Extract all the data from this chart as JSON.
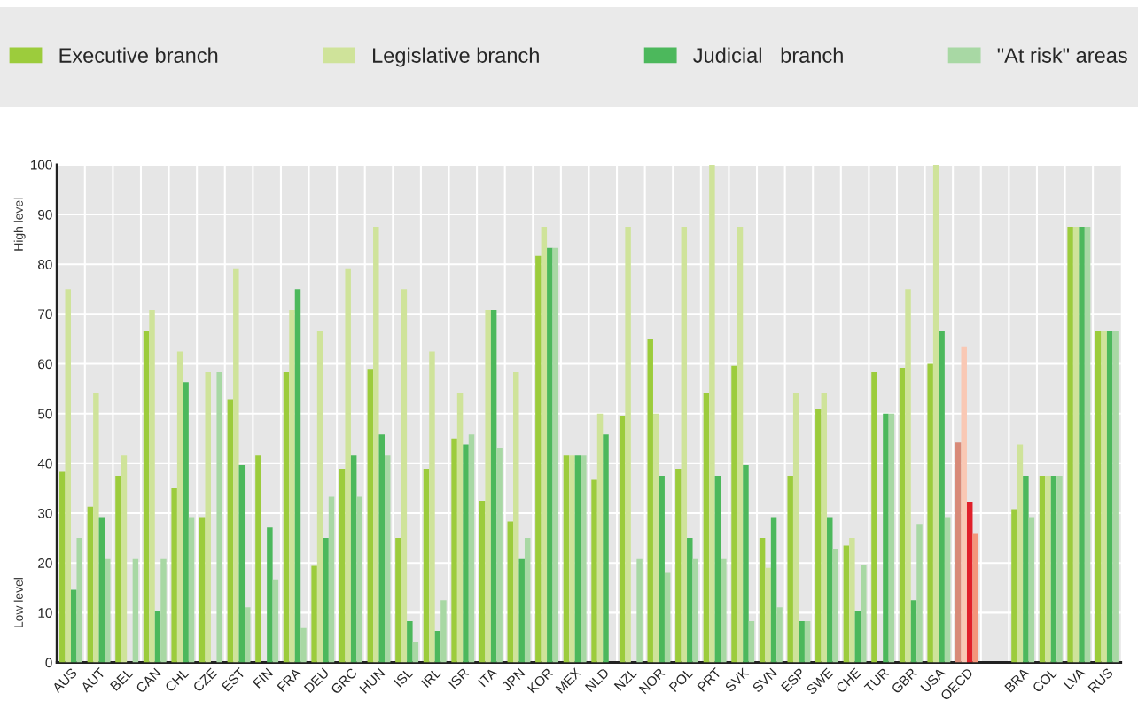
{
  "chart_data": {
    "type": "bar",
    "categories": [
      "AUS",
      "AUT",
      "BEL",
      "CAN",
      "CHL",
      "CZE",
      "EST",
      "FIN",
      "FRA",
      "DEU",
      "GRC",
      "HUN",
      "ISL",
      "IRL",
      "ISR",
      "ITA",
      "JPN",
      "KOR",
      "MEX",
      "NLD",
      "NZL",
      "NOR",
      "POL",
      "PRT",
      "SVK",
      "SVN",
      "ESP",
      "SWE",
      "CHE",
      "TUR",
      "GBR",
      "USA",
      "OECD",
      null,
      "BRA",
      "COL",
      "LVA",
      "RUS"
    ],
    "series": [
      {
        "name": "Executive branch",
        "color": "#9ccc3c",
        "colors": [
          "#9ccc3c",
          "#9ccc3c",
          "#9ccc3c",
          "#9ccc3c",
          "#9ccc3c",
          "#9ccc3c",
          "#9ccc3c",
          "#9ccc3c",
          "#9ccc3c",
          "#9ccc3c",
          "#9ccc3c",
          "#9ccc3c",
          "#9ccc3c",
          "#9ccc3c",
          "#9ccc3c",
          "#9ccc3c",
          "#9ccc3c",
          "#9ccc3c",
          "#9ccc3c",
          "#9ccc3c",
          "#9ccc3c",
          "#9ccc3c",
          "#9ccc3c",
          "#9ccc3c",
          "#9ccc3c",
          "#9ccc3c",
          "#9ccc3c",
          "#9ccc3c",
          "#9ccc3c",
          "#9ccc3c",
          "#9ccc3c",
          "#9ccc3c",
          "#d88a78",
          "#9ccc3c",
          "#9ccc3c",
          "#9ccc3c",
          "#9ccc3c",
          "#9ccc3c"
        ],
        "values": [
          38.3,
          31.3,
          37.5,
          66.7,
          35,
          29.2,
          52.9,
          41.7,
          58.3,
          19.4,
          38.9,
          59,
          25,
          38.9,
          45,
          32.5,
          28.3,
          81.7,
          41.7,
          36.7,
          49.6,
          65,
          38.9,
          54.2,
          59.6,
          25,
          37.5,
          51,
          23.5,
          58.3,
          59.2,
          60,
          44.2,
          null,
          30.8,
          37.5,
          87.5,
          66.7
        ]
      },
      {
        "name": "Legislative branch",
        "color": "#cfe39a",
        "colors": [
          "#cfe39a",
          "#cfe39a",
          "#cfe39a",
          "#cfe39a",
          "#cfe39a",
          "#cfe39a",
          "#cfe39a",
          "#cfe39a",
          "#cfe39a",
          "#cfe39a",
          "#cfe39a",
          "#cfe39a",
          "#cfe39a",
          "#cfe39a",
          "#cfe39a",
          "#cfe39a",
          "#cfe39a",
          "#cfe39a",
          "#cfe39a",
          "#cfe39a",
          "#cfe39a",
          "#cfe39a",
          "#cfe39a",
          "#cfe39a",
          "#cfe39a",
          "#cfe39a",
          "#cfe39a",
          "#cfe39a",
          "#cfe39a",
          "#cfe39a",
          "#cfe39a",
          "#cfe39a",
          "#f9c8b4",
          "#cfe39a",
          "#cfe39a",
          "#cfe39a",
          "#cfe39a",
          "#cfe39a"
        ],
        "values": [
          75,
          54.2,
          41.7,
          70.8,
          62.5,
          58.3,
          79.2,
          0,
          70.8,
          66.7,
          79.2,
          87.5,
          75,
          62.5,
          54.2,
          70.8,
          58.3,
          87.5,
          41.7,
          50,
          87.5,
          50,
          87.5,
          100,
          87.5,
          19,
          54.2,
          54.2,
          25,
          0,
          75,
          100,
          63.5,
          null,
          43.8,
          37.5,
          87.5,
          66.7
        ]
      },
      {
        "name": "Judicial   branch",
        "color": "#4cb85c",
        "colors": [
          "#4cb85c",
          "#4cb85c",
          "#4cb85c",
          "#4cb85c",
          "#4cb85c",
          "#4cb85c",
          "#4cb85c",
          "#4cb85c",
          "#4cb85c",
          "#4cb85c",
          "#4cb85c",
          "#4cb85c",
          "#4cb85c",
          "#4cb85c",
          "#4cb85c",
          "#4cb85c",
          "#4cb85c",
          "#4cb85c",
          "#4cb85c",
          "#4cb85c",
          "#4cb85c",
          "#4cb85c",
          "#4cb85c",
          "#4cb85c",
          "#4cb85c",
          "#4cb85c",
          "#4cb85c",
          "#4cb85c",
          "#4cb85c",
          "#4cb85c",
          "#4cb85c",
          "#4cb85c",
          "#e0202a",
          "#4cb85c",
          "#4cb85c",
          "#4cb85c",
          "#4cb85c",
          "#4cb85c"
        ],
        "values": [
          14.6,
          29.2,
          0,
          10.4,
          56.3,
          0,
          39.6,
          27.1,
          75,
          25,
          41.7,
          45.8,
          8.3,
          6.3,
          43.8,
          70.8,
          20.8,
          83.3,
          41.7,
          45.8,
          0,
          37.5,
          25,
          37.5,
          39.6,
          29.2,
          8.3,
          29.2,
          10.4,
          50,
          12.5,
          66.7,
          32.2,
          null,
          37.5,
          37.5,
          87.5,
          66.7
        ]
      },
      {
        "name": "\"At risk\" areas",
        "color": "#a8d8a4",
        "colors": [
          "#a8d8a4",
          "#a8d8a4",
          "#a8d8a4",
          "#a8d8a4",
          "#a8d8a4",
          "#a8d8a4",
          "#a8d8a4",
          "#a8d8a4",
          "#a8d8a4",
          "#a8d8a4",
          "#a8d8a4",
          "#a8d8a4",
          "#a8d8a4",
          "#a8d8a4",
          "#a8d8a4",
          "#a8d8a4",
          "#a8d8a4",
          "#a8d8a4",
          "#a8d8a4",
          "#a8d8a4",
          "#a8d8a4",
          "#a8d8a4",
          "#a8d8a4",
          "#a8d8a4",
          "#a8d8a4",
          "#a8d8a4",
          "#a8d8a4",
          "#a8d8a4",
          "#a8d8a4",
          "#a8d8a4",
          "#a8d8a4",
          "#a8d8a4",
          "#f4957a",
          "#a8d8a4",
          "#a8d8a4",
          "#a8d8a4",
          "#a8d8a4",
          "#a8d8a4"
        ],
        "values": [
          25,
          20.8,
          20.8,
          20.8,
          29.2,
          58.3,
          11.1,
          16.7,
          6.9,
          33.3,
          33.3,
          41.7,
          4.2,
          12.5,
          45.8,
          43,
          25,
          83.3,
          41.7,
          0,
          20.8,
          18,
          20.8,
          20.8,
          8.3,
          11.1,
          8.3,
          22.9,
          19.5,
          50,
          27.8,
          29.2,
          26,
          null,
          29.2,
          37.5,
          87.5,
          66.7
        ]
      }
    ],
    "ylim": [
      0,
      100
    ],
    "yticks": [
      0,
      10,
      20,
      30,
      40,
      50,
      60,
      70,
      80,
      90,
      100
    ],
    "annotations": [
      "High level",
      "Low level"
    ],
    "grid": true,
    "legend": "top"
  }
}
